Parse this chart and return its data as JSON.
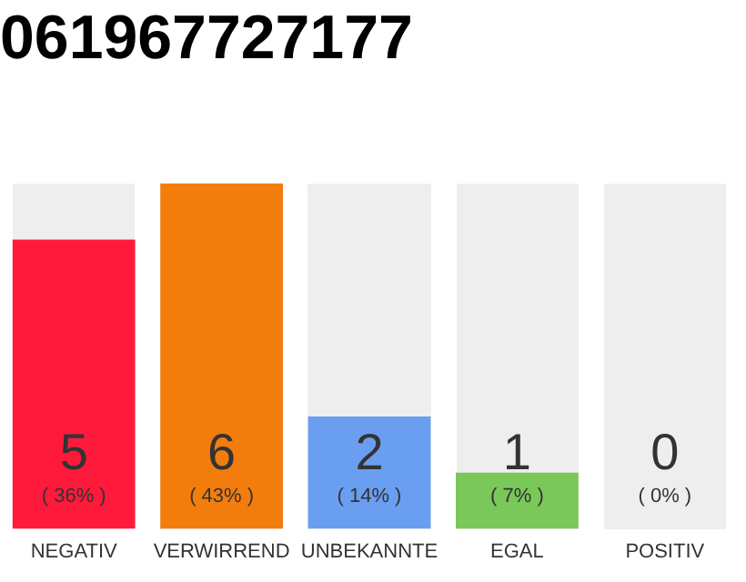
{
  "chart_data": {
    "type": "bar",
    "title": "061967727177",
    "categories": [
      "NEGATIV",
      "VERWIRREND",
      "UNBEKANNTE",
      "EGAL",
      "POSITIV"
    ],
    "values": [
      36,
      43,
      14,
      7,
      0
    ],
    "colors": [
      "#ff1a3c",
      "#f27d0c",
      "#6a9ef0",
      "#7ac75a",
      "#cccccc"
    ],
    "value_labels": [
      "( 36% )",
      "( 43% )",
      "( 14% )",
      "( 7% )",
      "( 0% )"
    ],
    "annotations": [
      "5",
      "6",
      "2",
      "1",
      "0"
    ],
    "tick_labels": "x",
    "grid": false,
    "legend": false
  }
}
